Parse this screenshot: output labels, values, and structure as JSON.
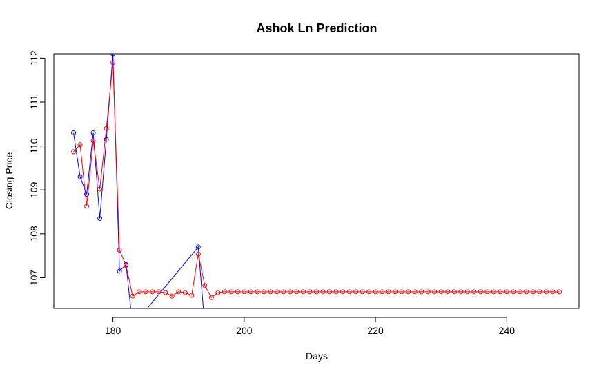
{
  "chart_data": {
    "type": "line",
    "title": "Ashok Ln Prediction",
    "xlabel": "Days",
    "ylabel": "Closing Price",
    "xlim": [
      171,
      251
    ],
    "ylim": [
      106.3,
      112.1
    ],
    "xticks": [
      180,
      200,
      220,
      240
    ],
    "yticks": [
      107,
      108,
      109,
      110,
      111,
      112
    ],
    "grid": false,
    "legend": "none",
    "series": [
      {
        "color": "#0000ff",
        "x": [
          174,
          175,
          176,
          177,
          178,
          179,
          180,
          181,
          182,
          183,
          193,
          194
        ],
        "y": [
          110.3,
          109.3,
          108.9,
          110.3,
          108.35,
          110.15,
          112.1,
          107.15,
          107.3,
          105.9,
          107.7,
          105.9
        ]
      },
      {
        "color": "#ff0000",
        "x": [
          174,
          175,
          176,
          177,
          178,
          179,
          180,
          181,
          182,
          183,
          184,
          185,
          186,
          187,
          188,
          189,
          190,
          191,
          192,
          193,
          194,
          195,
          196,
          197,
          198,
          199,
          200,
          201,
          202,
          203,
          204,
          205,
          206,
          207,
          208,
          209,
          210,
          211,
          212,
          213,
          214,
          215,
          216,
          217,
          218,
          219,
          220,
          221,
          222,
          223,
          224,
          225,
          226,
          227,
          228,
          229,
          230,
          231,
          232,
          233,
          234,
          235,
          236,
          237,
          238,
          239,
          240,
          241,
          242,
          243,
          244,
          245,
          246,
          247,
          248
        ],
        "y": [
          109.87,
          110.03,
          108.63,
          110.12,
          109.02,
          110.4,
          111.9,
          107.63,
          107.28,
          106.58,
          106.68,
          106.68,
          106.68,
          106.68,
          106.66,
          106.58,
          106.68,
          106.66,
          106.6,
          107.54,
          106.82,
          106.55,
          106.66,
          106.68,
          106.68,
          106.68,
          106.68,
          106.68,
          106.68,
          106.68,
          106.68,
          106.68,
          106.68,
          106.68,
          106.68,
          106.68,
          106.68,
          106.68,
          106.68,
          106.68,
          106.68,
          106.68,
          106.68,
          106.68,
          106.68,
          106.68,
          106.68,
          106.68,
          106.68,
          106.68,
          106.68,
          106.68,
          106.68,
          106.68,
          106.68,
          106.68,
          106.68,
          106.68,
          106.68,
          106.68,
          106.68,
          106.68,
          106.68,
          106.68,
          106.68,
          106.68,
          106.68,
          106.68,
          106.68,
          106.68,
          106.68,
          106.68,
          106.68,
          106.68,
          106.68
        ]
      }
    ]
  }
}
